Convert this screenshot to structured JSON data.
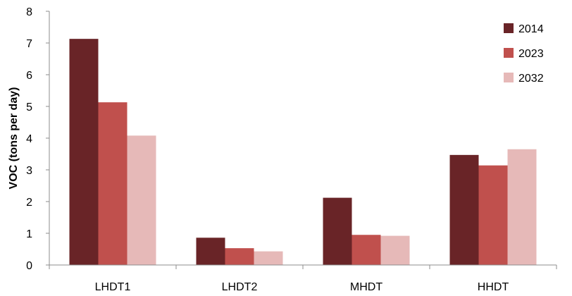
{
  "chart_data": {
    "type": "bar",
    "title": "",
    "xlabel": "",
    "ylabel": "VOC (tons per day)",
    "categories": [
      "LHDT1",
      "LHDT2",
      "MHDT",
      "HHDT"
    ],
    "series": [
      {
        "name": "2014",
        "color": "#692427",
        "values": [
          7.13,
          0.86,
          2.12,
          3.47
        ]
      },
      {
        "name": "2023",
        "color": "#c0504d",
        "values": [
          5.13,
          0.53,
          0.95,
          3.14
        ]
      },
      {
        "name": "2032",
        "color": "#e6b9b8",
        "values": [
          4.08,
          0.43,
          0.92,
          3.65
        ]
      }
    ],
    "ylim": [
      0,
      8
    ],
    "yticks": [
      0,
      1,
      2,
      3,
      4,
      5,
      6,
      7,
      8
    ],
    "grid": false,
    "legend_position": "top-right"
  }
}
